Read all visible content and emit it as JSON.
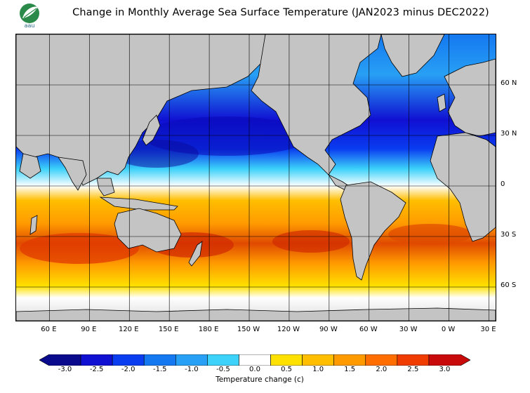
{
  "title": "Change in Monthly Average Sea Surface Temperature (JAN2023 minus DEC2022)",
  "logo": {
    "text": "aau",
    "icon": "leaf-logo"
  },
  "map": {
    "lat_labels": [
      {
        "label": "60 N",
        "lat": 60
      },
      {
        "label": "30 N",
        "lat": 30
      },
      {
        "label": "0",
        "lat": 0
      },
      {
        "label": "30 S",
        "lat": -30
      },
      {
        "label": "60 S",
        "lat": -60
      }
    ],
    "lon_labels": [
      {
        "label": "60 E",
        "lon": 60
      },
      {
        "label": "90 E",
        "lon": 90
      },
      {
        "label": "120 E",
        "lon": 120
      },
      {
        "label": "150 E",
        "lon": 150
      },
      {
        "label": "180 E",
        "lon": 180
      },
      {
        "label": "150 W",
        "lon": 210
      },
      {
        "label": "120 W",
        "lon": 240
      },
      {
        "label": "90 W",
        "lon": 270
      },
      {
        "label": "60 W",
        "lon": 300
      },
      {
        "label": "30 W",
        "lon": 330
      },
      {
        "label": "0 W",
        "lon": 360
      },
      {
        "label": "30 E",
        "lon": 390
      }
    ],
    "lon_range": [
      35,
      395
    ],
    "lat_range": [
      -80,
      90
    ],
    "land_color": "#c4c4c4",
    "ice_color": "#dcdcdc"
  },
  "colorbar": {
    "label": "Temperature change  (c)",
    "min": -3.25,
    "max": 3.25,
    "step": 0.5,
    "colors": [
      "#0a0a8c",
      "#1010d2",
      "#0a3cf0",
      "#1478f0",
      "#28a0f5",
      "#3cd2fa",
      "#ffffff",
      "#ffe100",
      "#ffbe00",
      "#ff9b00",
      "#ff6e00",
      "#f03c00",
      "#c80a0a"
    ],
    "ticks": [
      {
        "label": "-3.0",
        "value": -3.0
      },
      {
        "label": "-2.5",
        "value": -2.5
      },
      {
        "label": "-2.0",
        "value": -2.0
      },
      {
        "label": "-1.5",
        "value": -1.5
      },
      {
        "label": "-1.0",
        "value": -1.0
      },
      {
        "label": "-0.5",
        "value": -0.5
      },
      {
        "label": "0.0",
        "value": 0.0
      },
      {
        "label": "0.5",
        "value": 0.5
      },
      {
        "label": "1.0",
        "value": 1.0
      },
      {
        "label": "1.5",
        "value": 1.5
      },
      {
        "label": "2.0",
        "value": 2.0
      },
      {
        "label": "2.5",
        "value": 2.5
      },
      {
        "label": "3.0",
        "value": 3.0
      }
    ]
  }
}
